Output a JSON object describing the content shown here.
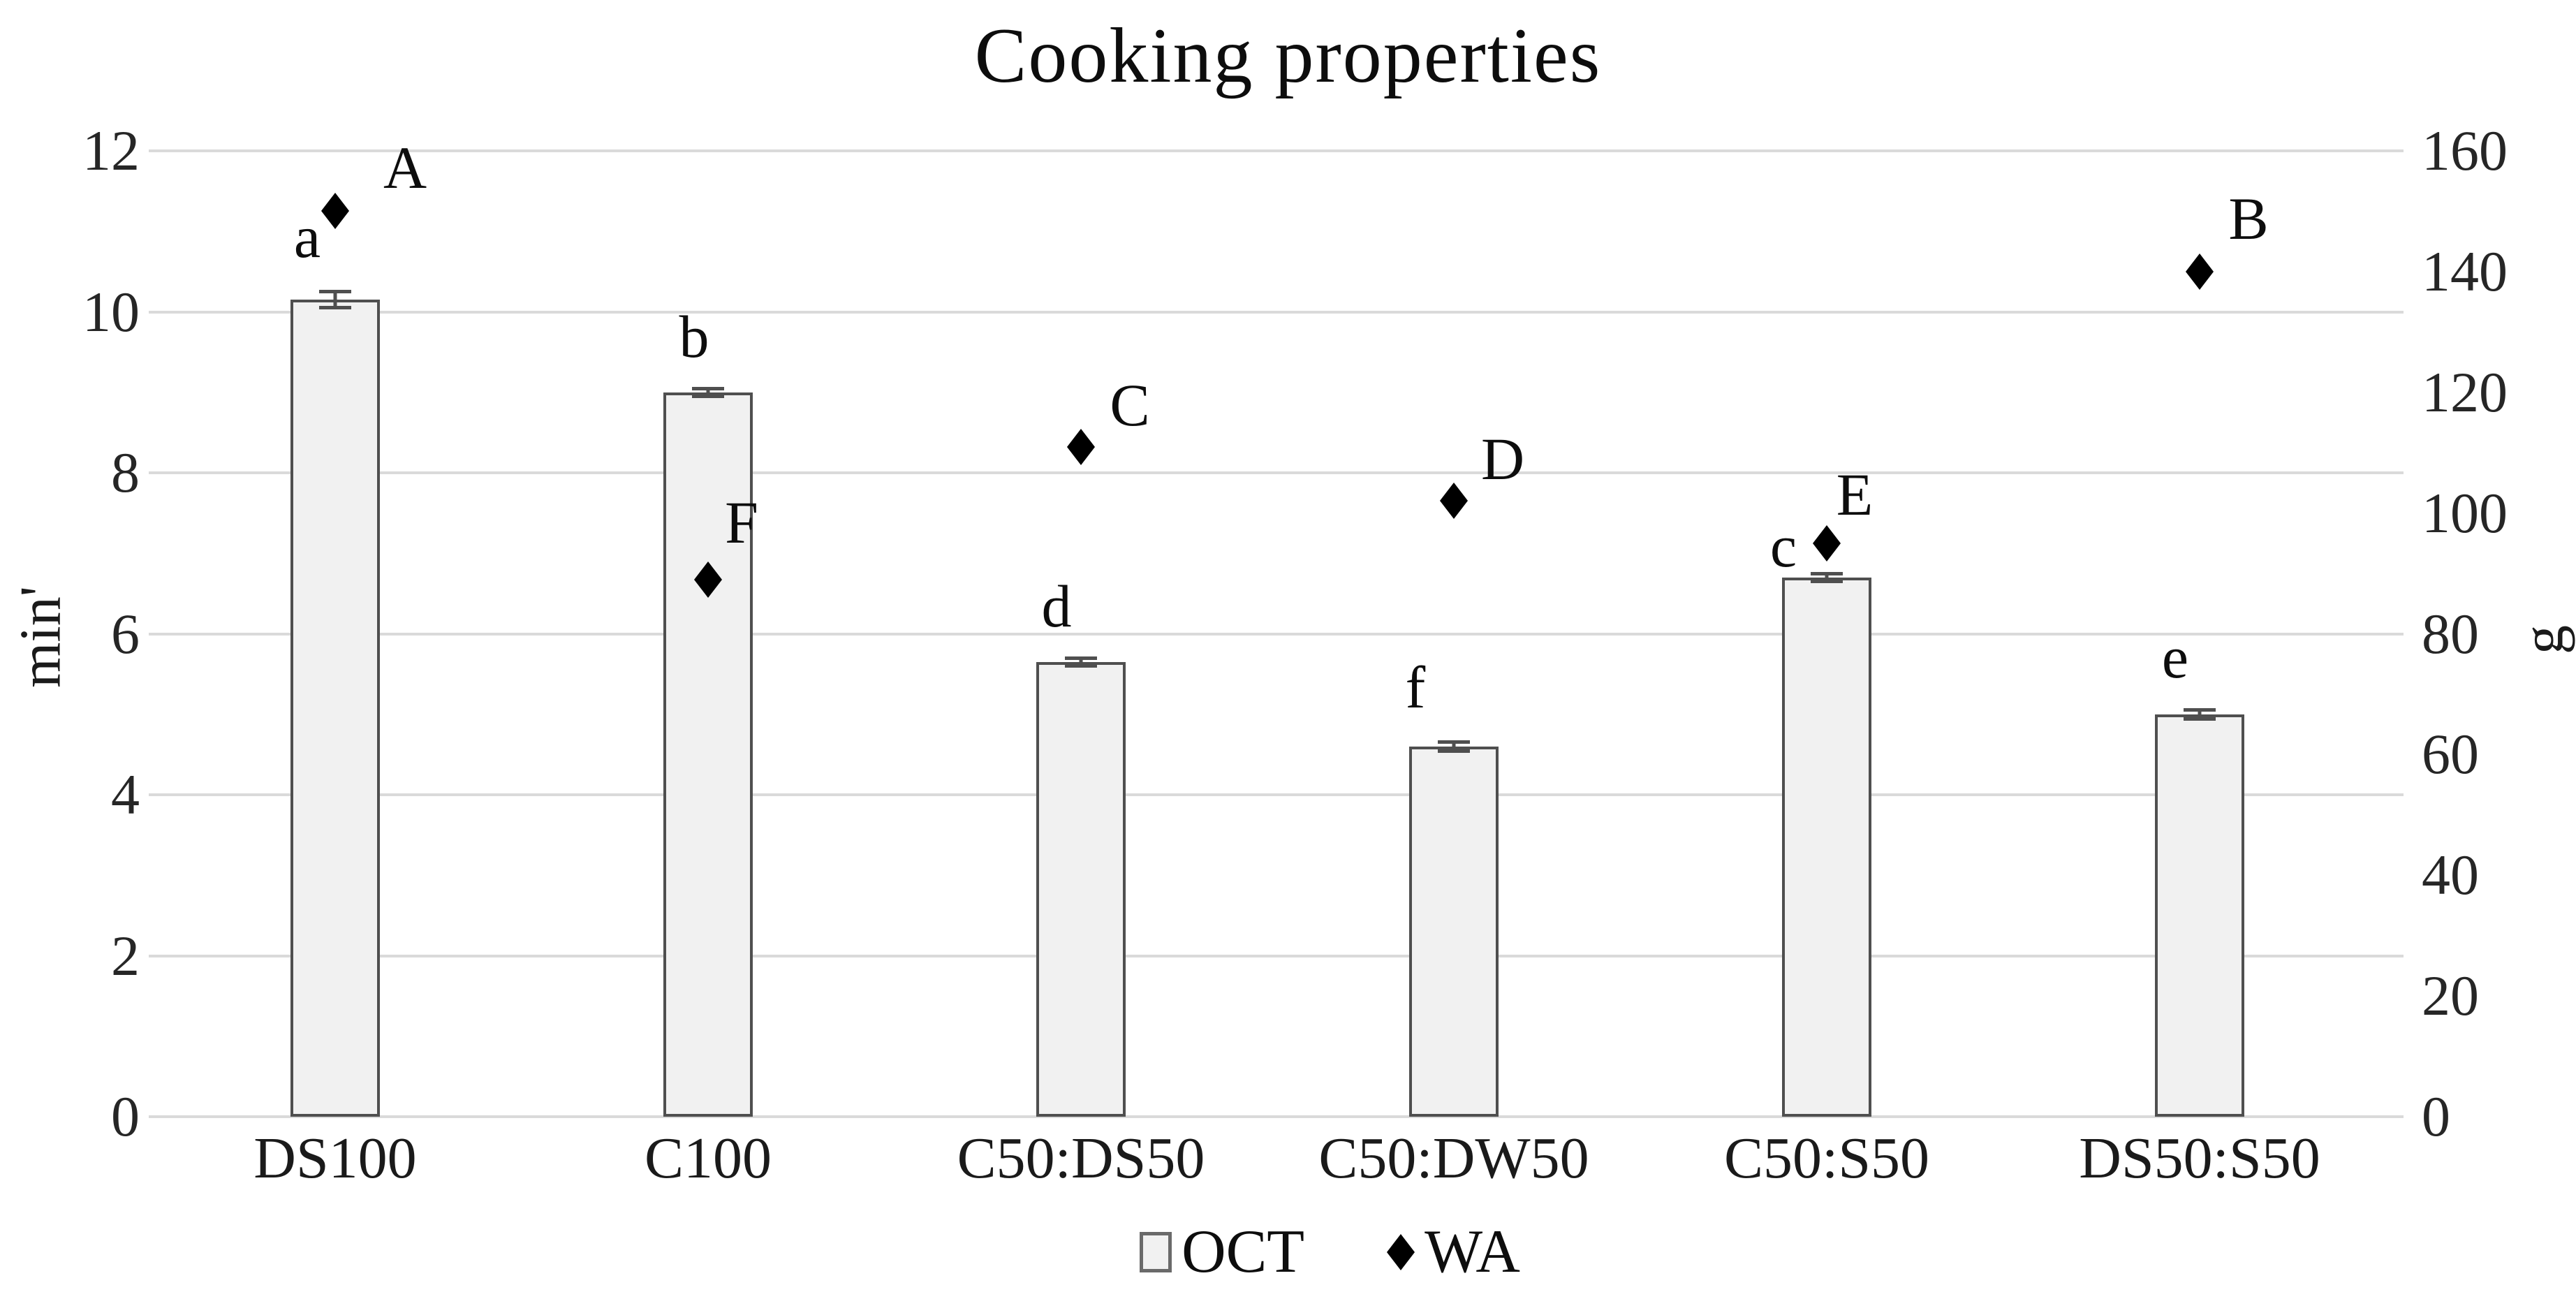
{
  "chart_data": {
    "type": "combo (bar + diamond scatter, dual y-axis)",
    "title": "Cooking properties",
    "categories": [
      "DS100",
      "C100",
      "C50:DS50",
      "C50:DW50",
      "C50:S50",
      "DS50:S50"
    ],
    "series": [
      {
        "name": "OCT",
        "type": "bar",
        "axis": "left",
        "unit": "min'",
        "values": [
          10.15,
          9.0,
          5.65,
          4.6,
          6.7,
          5.0
        ],
        "errors": [
          0.12,
          0.07,
          0.07,
          0.08,
          0.07,
          0.08
        ],
        "point_labels": [
          "a",
          "b",
          "d",
          "f",
          "c",
          "e"
        ]
      },
      {
        "name": "WA",
        "type": "scatter",
        "marker": "diamond",
        "axis": "right",
        "unit": "g",
        "values": [
          150,
          89,
          111,
          102,
          95,
          140
        ],
        "point_labels": [
          "A",
          "F",
          "C",
          "D",
          "E",
          "B"
        ]
      }
    ],
    "axes": {
      "left": {
        "label": "min'",
        "min": 0,
        "max": 12,
        "step": 2,
        "ticks": [
          0,
          2,
          4,
          6,
          8,
          10,
          12
        ]
      },
      "right": {
        "label": "g",
        "min": 0,
        "max": 160,
        "step": 20,
        "ticks": [
          0,
          20,
          40,
          60,
          80,
          100,
          120,
          140,
          160
        ]
      }
    },
    "grid": true,
    "legend": {
      "position": "bottom",
      "entries": [
        "OCT",
        "WA"
      ]
    },
    "colors": {
      "bar_fill": "#f1f1f1",
      "bar_border": "#4f4f4f",
      "marker": "#000000",
      "gridline": "#dadada",
      "text": "#0d0d0d"
    }
  }
}
